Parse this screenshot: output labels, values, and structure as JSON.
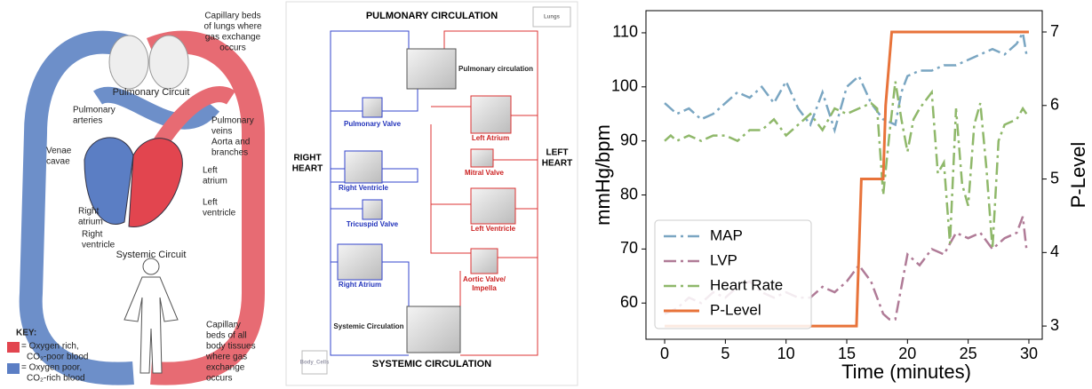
{
  "left_diagram": {
    "labels": {
      "lungs_capillary": [
        "Capillary beds",
        "of lungs where",
        "gas exchange",
        "occurs"
      ],
      "pulmonary_circuit": [
        "Pulmonary Circuit"
      ],
      "pulmonary_arteries": [
        "Pulmonary",
        "arteries"
      ],
      "pulmonary_veins": [
        "Pulmonary",
        "veins"
      ],
      "aorta": [
        "Aorta and",
        "branches"
      ],
      "venae_cavae": [
        "Venae",
        "cavae"
      ],
      "left_atrium": [
        "Left",
        "atrium"
      ],
      "left_ventricle": [
        "Left",
        "ventricle"
      ],
      "right_atrium": [
        "Right",
        "atrium"
      ],
      "right_ventricle": [
        "Right",
        "ventricle"
      ],
      "systemic_circuit": [
        "Systemic Circuit"
      ],
      "body_capillary": [
        "Capillary",
        "beds of all",
        "body tissues",
        "where gas",
        "exchange",
        "occurs"
      ]
    },
    "key": {
      "title": "KEY:",
      "items": [
        [
          "= Oxygen rich,",
          "CO₂-poor blood"
        ],
        [
          "= Oxygen poor,",
          "CO₂-rich blood"
        ]
      ]
    }
  },
  "middle_diagram": {
    "titles": [
      "PULMONARY CIRCULATION",
      "SYSTEMIC CIRCULATION"
    ],
    "side_labels": [
      [
        "RIGHT",
        "HEART"
      ],
      [
        "LEFT",
        "HEART"
      ]
    ],
    "blocks": [
      "Lungs",
      "Pulmonary circulation",
      "Pulmonary Valve",
      "Left Atrium",
      "Mitral Valve",
      "Right Ventricle",
      "Left Ventricle",
      "Tricuspid Valve",
      "Right Atrium",
      "Aortic Valve/",
      "Impella",
      "Systemic Circulation",
      "Body_Cells"
    ]
  },
  "chart_data": {
    "type": "line",
    "xlabel": "Time (minutes)",
    "ylabel": "mmHg/bpm",
    "y2label": "P-Level",
    "xlim": [
      -1.54,
      31.1
    ],
    "xticks": [
      0,
      5,
      10,
      15,
      20,
      25,
      30
    ],
    "ylim": [
      53.3,
      114.1
    ],
    "yticks": [
      60,
      70,
      80,
      90,
      100,
      110
    ],
    "y2lim": [
      2.82,
      7.29
    ],
    "y2ticks": [
      3,
      4,
      5,
      6,
      7
    ],
    "legend": "lower left",
    "series": [
      {
        "name": "MAP",
        "color": "#7aa6c2",
        "style": "dashdot",
        "x": [
          0,
          1,
          2,
          3,
          4,
          5,
          6,
          7,
          8,
          9,
          10,
          11,
          12,
          13,
          14,
          15,
          16,
          17,
          18,
          19,
          19.5,
          20,
          21,
          22,
          23,
          24,
          25,
          26,
          27,
          28,
          29,
          29.5,
          29.8
        ],
        "values": [
          97,
          95,
          96,
          94,
          95,
          97,
          99,
          98,
          100,
          97,
          101,
          96,
          93,
          99,
          92,
          100,
          102,
          97,
          94,
          93,
          99,
          102,
          103,
          103,
          104,
          104,
          105,
          106,
          107,
          106,
          108,
          110,
          106
        ]
      },
      {
        "name": "LVP",
        "color": "#b07b97",
        "style": "dashdot",
        "x": [
          0,
          1,
          2,
          3,
          4,
          5,
          6,
          7,
          8,
          9,
          10,
          11,
          12,
          13,
          14,
          15,
          16,
          17,
          18,
          18.5,
          19,
          20,
          21,
          22,
          23,
          24,
          25,
          26,
          27,
          28,
          29,
          29.5,
          29.8
        ],
        "values": [
          58,
          59,
          61,
          60,
          62,
          61,
          63,
          64,
          62,
          61,
          62,
          61,
          61,
          63,
          62,
          64,
          67,
          64,
          58,
          57,
          57,
          69,
          67,
          70,
          69,
          73,
          72,
          73,
          70,
          72,
          73,
          76,
          70
        ]
      },
      {
        "name": "Heart Rate",
        "color": "#8fb86a",
        "style": "dashdot",
        "x": [
          0,
          0.5,
          1,
          2,
          3,
          4,
          5,
          6,
          7,
          8,
          9,
          10,
          11,
          12,
          13,
          14,
          15,
          16,
          17,
          17.5,
          18,
          18.5,
          19,
          19.5,
          20,
          20.5,
          21,
          22,
          22.5,
          23,
          23.5,
          24,
          24.5,
          25,
          25.5,
          26,
          26.5,
          27,
          27.5,
          28,
          29,
          29.5,
          29.8
        ],
        "values": [
          90,
          91,
          90,
          91,
          90,
          91,
          91,
          90,
          92,
          92,
          94,
          91,
          93,
          95,
          92,
          96,
          95,
          96,
          97,
          96,
          80,
          91,
          101,
          94,
          88,
          94,
          96,
          99,
          84,
          86,
          71,
          96,
          82,
          78,
          93,
          97,
          85,
          70,
          90,
          93,
          94,
          96,
          95
        ]
      },
      {
        "name": "P-Level",
        "color": "#e8733a",
        "style": "solid",
        "axis": "y2",
        "x": [
          0,
          15.8,
          16.2,
          18,
          18.2,
          18.7,
          30
        ],
        "values": [
          3,
          3,
          5,
          5,
          6,
          7,
          7
        ]
      }
    ]
  }
}
